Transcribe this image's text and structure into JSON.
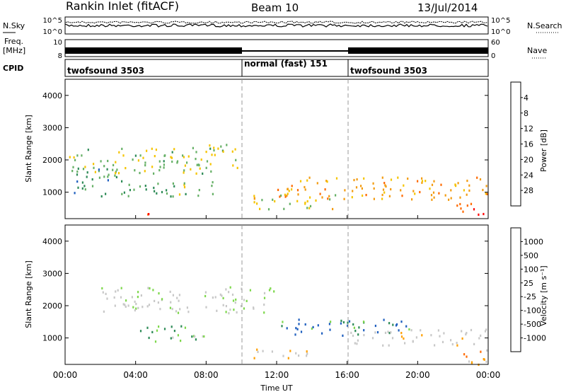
{
  "header": {
    "station": "Rankin Inlet (fitACF)",
    "beam": "Beam 10",
    "date": "13/Jul/2014"
  },
  "noise_panel": {
    "left_label": "N.Sky",
    "right_label": "N.Search",
    "left_ticks": [
      "10^5",
      "10^0"
    ],
    "right_ticks": [
      "10^5",
      "10^0"
    ]
  },
  "freq_panel": {
    "left_label_1": "Freq.",
    "left_label_2": "[MHz]",
    "right_label": "Nave",
    "left_ticks": [
      "10",
      "8"
    ],
    "right_ticks": [
      "60",
      "0"
    ]
  },
  "cpid": {
    "label": "CPID",
    "segments": [
      {
        "name": "twofsound 3503",
        "start_h": 0,
        "end_h": 10
      },
      {
        "name": "normal (fast) 151",
        "start_h": 10,
        "end_h": 16
      },
      {
        "name": "twofsound 3503",
        "start_h": 16,
        "end_h": 24
      }
    ]
  },
  "time_axis": {
    "label": "Time UT",
    "ticks": [
      "00:00",
      "04:00",
      "08:00",
      "12:00",
      "16:00",
      "20:00",
      "00:00"
    ]
  },
  "colors": {
    "power_scale": [
      "#0000ff",
      "#1f5fbf",
      "#2e8b57",
      "#66b066",
      "#f5c400",
      "#f39c12",
      "#ff6a00",
      "#ff0000"
    ],
    "velocity_scale": [
      "#ff0000",
      "#ff6a00",
      "#ffa000",
      "#c8c8c8",
      "#c8c8c8",
      "#7ed84c",
      "#2e8b57",
      "#1f5fbf",
      "#0000ff"
    ]
  },
  "chart_data": [
    {
      "type": "heatmap",
      "title": "",
      "xlabel": "",
      "ylabel": "Slant Range [km]",
      "xlim": [
        0,
        24
      ],
      "ylim": [
        180,
        4500
      ],
      "yticks": [
        "1000",
        "2000",
        "3000",
        "4000"
      ],
      "colorbar": {
        "label": "Power [dB]",
        "ticks": [
          "4",
          "8",
          "12",
          "16",
          "20",
          "24",
          "28"
        ],
        "range": [
          0,
          30
        ]
      },
      "echo_regions": [
        {
          "t0": 0.0,
          "t1": 9.8,
          "r0": 1600,
          "r1": 2500,
          "value": 14
        },
        {
          "t0": 0.5,
          "t1": 3.0,
          "r0": 900,
          "r1": 1800,
          "value": 10
        },
        {
          "t0": 4.5,
          "t1": 5.0,
          "r0": 180,
          "r1": 600,
          "value": 28
        },
        {
          "t0": 3.0,
          "t1": 8.5,
          "r0": 900,
          "r1": 1400,
          "value": 12
        },
        {
          "t0": 10.5,
          "t1": 15.5,
          "r0": 500,
          "r1": 1000,
          "value": 16
        },
        {
          "t0": 12.0,
          "t1": 24.0,
          "r0": 800,
          "r1": 1500,
          "value": 20
        },
        {
          "t0": 22.0,
          "t1": 24.0,
          "r0": 300,
          "r1": 700,
          "value": 24
        }
      ]
    },
    {
      "type": "heatmap",
      "title": "",
      "xlabel": "Time UT",
      "ylabel": "Slant Range [km]",
      "xlim": [
        0,
        24
      ],
      "ylim": [
        180,
        4500
      ],
      "yticks": [
        "1000",
        "2000",
        "3000",
        "4000"
      ],
      "colorbar": {
        "label": "Velocity [m s⁻¹]",
        "ticks": [
          "1000",
          "500",
          "100",
          "25",
          "-25",
          "-100",
          "-500",
          "-1000"
        ],
        "range": [
          -1000,
          1000
        ]
      },
      "echo_regions": [
        {
          "t0": 2.0,
          "t1": 12.0,
          "r0": 1800,
          "r1": 2600,
          "value": 0
        },
        {
          "t0": 4.0,
          "t1": 8.0,
          "r0": 900,
          "r1": 1400,
          "value": 300
        },
        {
          "t0": 12.0,
          "t1": 20.0,
          "r0": 1100,
          "r1": 1600,
          "value": 500
        },
        {
          "t0": 16.0,
          "t1": 24.0,
          "r0": 800,
          "r1": 1300,
          "value": -200
        },
        {
          "t0": 10.0,
          "t1": 14.0,
          "r0": 400,
          "r1": 700,
          "value": -300
        },
        {
          "t0": 22.0,
          "t1": 24.0,
          "r0": 200,
          "r1": 700,
          "value": -400
        }
      ]
    }
  ]
}
